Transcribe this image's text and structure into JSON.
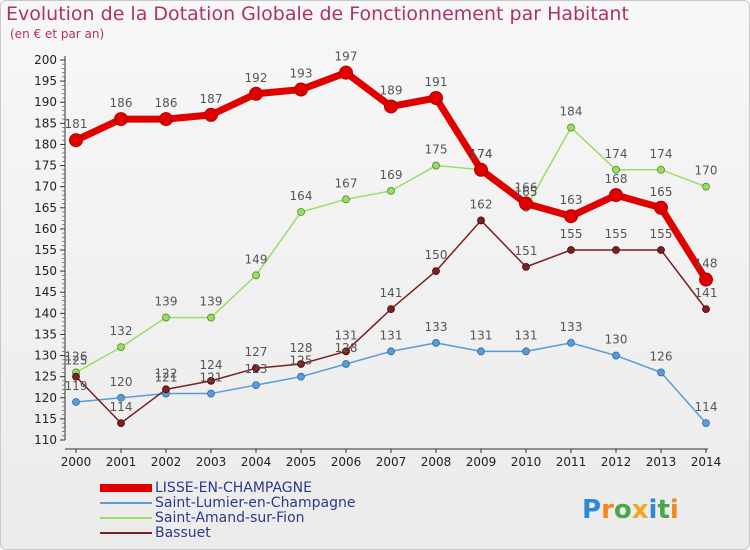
{
  "chart_data": {
    "type": "line",
    "title": "Evolution de la Dotation Globale de Fonctionnement par Habitant",
    "subtitle": "(en € et par an)",
    "xlabel": "",
    "ylabel": "",
    "x": [
      "2000",
      "2001",
      "2002",
      "2003",
      "2004",
      "2005",
      "2006",
      "2007",
      "2008",
      "2009",
      "2010",
      "2011",
      "2012",
      "2013",
      "2014"
    ],
    "ylim": [
      110,
      200
    ],
    "yticks": [
      110,
      115,
      120,
      125,
      130,
      135,
      140,
      145,
      150,
      155,
      160,
      165,
      170,
      175,
      180,
      185,
      190,
      195,
      200
    ],
    "grid": false,
    "legend_position": "bottom-left",
    "series": [
      {
        "name": "LISSE-EN-CHAMPAGNE",
        "color": "#e00000",
        "values": [
          181,
          186,
          186,
          187,
          192,
          193,
          197,
          189,
          191,
          174,
          166,
          163,
          168,
          165,
          148
        ]
      },
      {
        "name": "Saint-Lumier-en-Champagne",
        "color": "#5b9bd5",
        "values": [
          119,
          120,
          121,
          121,
          123,
          125,
          128,
          131,
          133,
          131,
          131,
          133,
          130,
          126,
          114
        ]
      },
      {
        "name": "Saint-Amand-sur-Fion",
        "color": "#99dd66",
        "values": [
          126,
          132,
          139,
          139,
          149,
          164,
          167,
          169,
          175,
          174,
          165,
          184,
          174,
          174,
          170
        ]
      },
      {
        "name": "Bassuet",
        "color": "#7a2020",
        "values": [
          125,
          114,
          122,
          124,
          127,
          128,
          131,
          141,
          150,
          162,
          151,
          155,
          155,
          155,
          141
        ]
      }
    ]
  },
  "logo": {
    "text": "Proxiti"
  }
}
